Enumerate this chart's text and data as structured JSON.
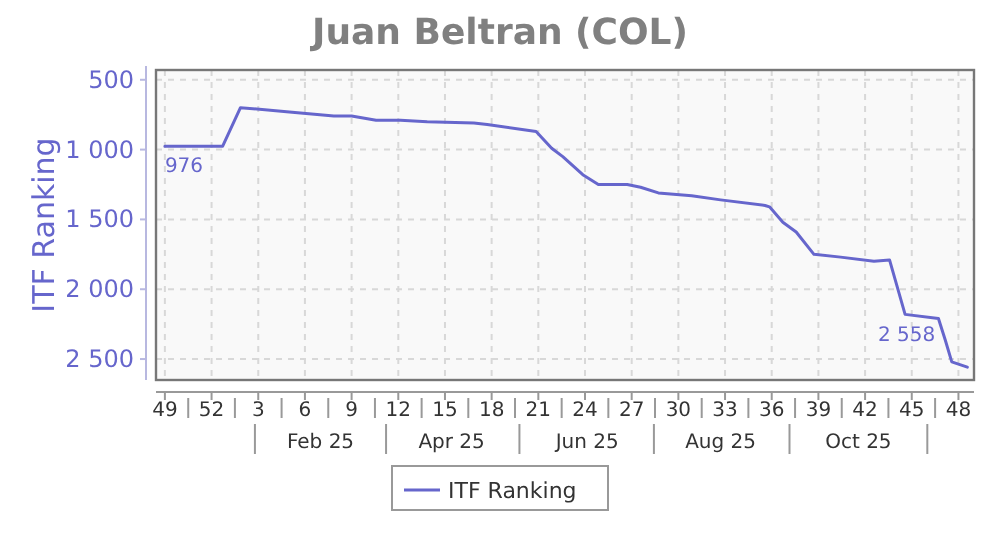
{
  "chart_data": {
    "type": "line",
    "title": "Juan Beltran (COL)",
    "ylabel": "ITF Ranking",
    "x": [
      "2024-12-02",
      "2024-12-28",
      "2025-01-05",
      "2025-01-27",
      "2025-02-16",
      "2025-02-24",
      "2025-03-07",
      "2025-03-18",
      "2025-03-30",
      "2025-04-20",
      "2025-04-26",
      "2025-05-18",
      "2025-05-25",
      "2025-05-30",
      "2025-06-08",
      "2025-06-15",
      "2025-06-28",
      "2025-07-04",
      "2025-07-12",
      "2025-07-27",
      "2025-08-09",
      "2025-08-29",
      "2025-08-31",
      "2025-09-06",
      "2025-09-12",
      "2025-09-20",
      "2025-10-02",
      "2025-10-17",
      "2025-10-24",
      "2025-10-31",
      "2025-11-15",
      "2025-11-18",
      "2025-11-21",
      "2025-11-28"
    ],
    "series": [
      {
        "name": "ITF Ranking",
        "color": "#6666cc",
        "values": [
          976,
          976,
          700,
          730,
          760,
          760,
          790,
          790,
          800,
          810,
          820,
          870,
          990,
          1050,
          1180,
          1250,
          1250,
          1270,
          1310,
          1330,
          1360,
          1400,
          1410,
          1520,
          1590,
          1750,
          1770,
          1800,
          1790,
          2180,
          2210,
          2360,
          2520,
          2558
        ]
      }
    ],
    "xlim": [
      "2024-11-28",
      "2025-12-01"
    ],
    "xticks": [
      {
        "value": "2024-12-02",
        "label": "49"
      },
      {
        "value": "2024-12-23",
        "label": "52"
      },
      {
        "value": "2025-01-13",
        "label": "3"
      },
      {
        "value": "2025-02-03",
        "label": "6"
      },
      {
        "value": "2025-02-24",
        "label": "9"
      },
      {
        "value": "2025-03-17",
        "label": "12"
      },
      {
        "value": "2025-04-07",
        "label": "15"
      },
      {
        "value": "2025-04-28",
        "label": "18"
      },
      {
        "value": "2025-05-19",
        "label": "21"
      },
      {
        "value": "2025-06-09",
        "label": "24"
      },
      {
        "value": "2025-06-30",
        "label": "27"
      },
      {
        "value": "2025-07-21",
        "label": "30"
      },
      {
        "value": "2025-08-11",
        "label": "33"
      },
      {
        "value": "2025-09-01",
        "label": "36"
      },
      {
        "value": "2025-09-22",
        "label": "39"
      },
      {
        "value": "2025-10-13",
        "label": "42"
      },
      {
        "value": "2025-11-03",
        "label": "45"
      },
      {
        "value": "2025-11-24",
        "label": "48"
      }
    ],
    "x2lim": [
      "2024-11-28",
      "2025-12-01"
    ],
    "x2ticks": [
      {
        "value": "2025-02-10",
        "label": "Feb 25"
      },
      {
        "value": "2025-04-10",
        "label": "Apr 25"
      },
      {
        "value": "2025-06-10",
        "label": "Jun 25"
      },
      {
        "value": "2025-08-09",
        "label": "Aug 25"
      },
      {
        "value": "2025-10-10",
        "label": "Oct 25"
      }
    ],
    "ylim": [
      2650,
      430
    ],
    "yticks": [
      {
        "value": 500,
        "label": "500"
      },
      {
        "value": 1000,
        "label": "1 000"
      },
      {
        "value": 1500,
        "label": "1 500"
      },
      {
        "value": 2000,
        "label": "2 000"
      },
      {
        "value": 2500,
        "label": "2 500"
      }
    ],
    "annotations": [
      {
        "text": "976",
        "x": "2024-12-02",
        "y": 976
      },
      {
        "text": "2 558",
        "x": "2025-11-28",
        "y": 2558
      }
    ],
    "grid": true,
    "legend": "bottom",
    "marker": "none",
    "line_style": "solid"
  }
}
